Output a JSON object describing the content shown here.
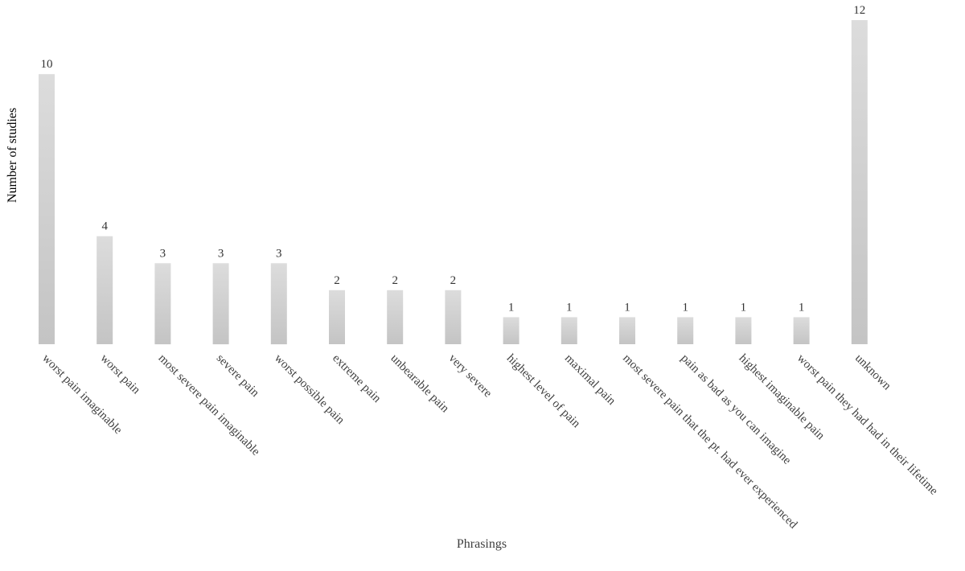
{
  "chart_data": {
    "type": "bar",
    "title": "",
    "xlabel": "Phrasings",
    "ylabel": "Number of studies",
    "ylim": [
      0,
      12
    ],
    "grid": false,
    "legend": "none",
    "colors": {
      "bar_top": "#dcdcdc",
      "bar_bottom": "#c4c4c4",
      "text": "#404040"
    },
    "categories": [
      "worst pain imaginable",
      "worst pain",
      "most severe pain imaginable",
      "severe pain",
      "worst possible pain",
      "extreme pain",
      "unbearable pain",
      "very severe",
      "highest level of pain",
      "maximal pain",
      "most severe pain that the pt. had ever experienced",
      "pain as bad as you can imagine",
      "highest imaginable pain",
      "worst pain they had had in their lifetime",
      "unknown"
    ],
    "values": [
      10,
      4,
      3,
      3,
      3,
      2,
      2,
      2,
      1,
      1,
      1,
      1,
      1,
      1,
      12
    ]
  }
}
